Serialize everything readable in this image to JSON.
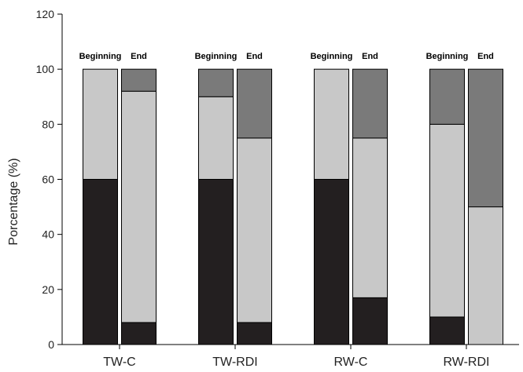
{
  "chart_data": {
    "type": "bar",
    "stacked": true,
    "ylabel": "Porcentage (%)",
    "xlabel": "",
    "ylim": [
      0,
      120
    ],
    "yticks": [
      0,
      20,
      40,
      60,
      80,
      100,
      120
    ],
    "grid": false,
    "legend": "none",
    "groups": [
      "TW-C",
      "TW-RDI",
      "RW-C",
      "RW-RDI"
    ],
    "bar_labels": [
      "Beginning",
      "End"
    ],
    "series_colors": [
      "#231f20",
      "#c8c8c8",
      "#7a7a7a"
    ],
    "bars": [
      {
        "group": "TW-C",
        "label": "Beginning",
        "segments": [
          60,
          40,
          0
        ]
      },
      {
        "group": "TW-C",
        "label": "End",
        "segments": [
          8,
          84,
          8
        ]
      },
      {
        "group": "TW-RDI",
        "label": "Beginning",
        "segments": [
          60,
          30,
          10
        ]
      },
      {
        "group": "TW-RDI",
        "label": "End",
        "segments": [
          8,
          67,
          25
        ]
      },
      {
        "group": "RW-C",
        "label": "Beginning",
        "segments": [
          60,
          40,
          0
        ]
      },
      {
        "group": "RW-C",
        "label": "End",
        "segments": [
          17,
          58,
          25
        ]
      },
      {
        "group": "RW-RDI",
        "label": "Beginning",
        "segments": [
          10,
          70,
          20
        ]
      },
      {
        "group": "RW-RDI",
        "label": "End",
        "segments": [
          0,
          50,
          50
        ]
      }
    ]
  }
}
